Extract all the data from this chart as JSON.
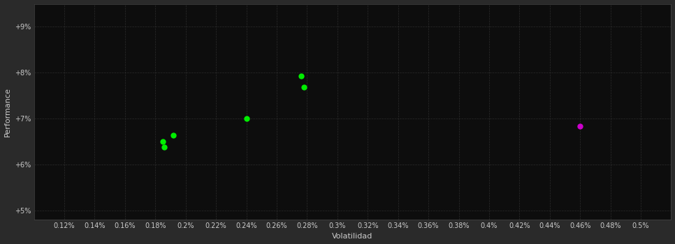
{
  "background_color": "#2a2a2a",
  "plot_bg_color": "#0d0d0d",
  "grid_color": "#333333",
  "xlabel": "Volatilidad",
  "ylabel": "Performance",
  "xlim": [
    0.1,
    0.52
  ],
  "ylim": [
    0.048,
    0.095
  ],
  "xticks": [
    0.12,
    0.14,
    0.16,
    0.18,
    0.2,
    0.22,
    0.24,
    0.26,
    0.28,
    0.3,
    0.32,
    0.34,
    0.36,
    0.38,
    0.4,
    0.42,
    0.44,
    0.46,
    0.48,
    0.5
  ],
  "xtick_labels": [
    "0.12%",
    "0.14%",
    "0.16%",
    "0.18%",
    "0.2%",
    "0.22%",
    "0.24%",
    "0.26%",
    "0.28%",
    "0.3%",
    "0.32%",
    "0.34%",
    "0.36%",
    "0.38%",
    "0.4%",
    "0.42%",
    "0.44%",
    "0.46%",
    "0.48%",
    "0.5%"
  ],
  "yticks": [
    0.05,
    0.06,
    0.07,
    0.08,
    0.09
  ],
  "ytick_labels": [
    "+5%",
    "+6%",
    "+7%",
    "+8%",
    "+9%"
  ],
  "green_points": [
    [
      0.185,
      0.065
    ],
    [
      0.186,
      0.0638
    ],
    [
      0.192,
      0.0663
    ],
    [
      0.24,
      0.07
    ],
    [
      0.276,
      0.0793
    ],
    [
      0.278,
      0.0768
    ]
  ],
  "magenta_points": [
    [
      0.46,
      0.0683
    ]
  ],
  "green_color": "#00ee00",
  "magenta_color": "#cc00cc",
  "marker_size": 6,
  "tick_color": "#cccccc",
  "label_color": "#cccccc",
  "tick_fontsize": 7,
  "label_fontsize": 8,
  "spine_color": "#444444"
}
